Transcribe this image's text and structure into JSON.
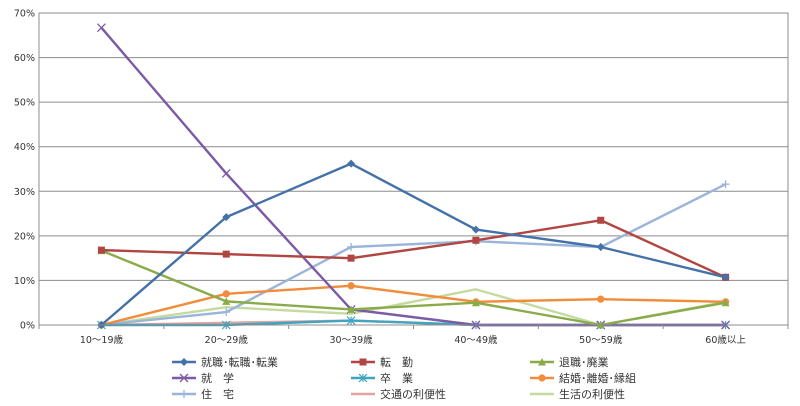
{
  "chart_data": {
    "type": "line",
    "categories": [
      "10～19歳",
      "20～29歳",
      "30～39歳",
      "40～49歳",
      "50～59歳",
      "60歳以上"
    ],
    "ylim": [
      0,
      70
    ],
    "yticks": [
      0,
      10,
      20,
      30,
      40,
      50,
      60,
      70
    ],
    "ytick_labels": [
      "0%",
      "10%",
      "20%",
      "30%",
      "40%",
      "50%",
      "60%",
      "70%"
    ],
    "grid": true,
    "legend_position": "bottom",
    "series": [
      {
        "name": "就職･転職･転業",
        "color": "#4472A8",
        "marker": "diamond",
        "values": [
          0,
          24.2,
          36.2,
          21.4,
          17.5,
          10.7
        ]
      },
      {
        "name": "転　勤",
        "color": "#B04541",
        "marker": "square",
        "values": [
          16.8,
          15.9,
          15.0,
          19.0,
          23.5,
          10.7
        ]
      },
      {
        "name": "退職･廃業",
        "color": "#8AAB4A",
        "marker": "triangle",
        "values": [
          16.7,
          5.3,
          3.5,
          5.0,
          0,
          5.0
        ]
      },
      {
        "name": "就　学",
        "color": "#7B5AA6",
        "marker": "x",
        "values": [
          66.7,
          34.0,
          3.5,
          0,
          0,
          0
        ]
      },
      {
        "name": "卒　業",
        "color": "#3FA5C0",
        "marker": "star",
        "values": [
          0,
          0,
          1.0,
          0,
          0,
          0
        ]
      },
      {
        "name": "結婚･離婚･縁組",
        "color": "#F08C3A",
        "marker": "circle",
        "values": [
          0,
          7.0,
          8.8,
          5.2,
          5.8,
          5.2
        ]
      },
      {
        "name": "住　宅",
        "color": "#9BB5DA",
        "marker": "plus",
        "values": [
          0,
          2.9,
          17.5,
          18.8,
          17.5,
          31.6
        ]
      },
      {
        "name": "交通の利便性",
        "color": "#E3A3A1",
        "marker": "none",
        "values": [
          0,
          0.5,
          1.0,
          0,
          0,
          0
        ]
      },
      {
        "name": "生活の利便性",
        "color": "#C5DA9F",
        "marker": "none",
        "values": [
          0,
          4.0,
          2.5,
          8.0,
          0,
          5.2
        ]
      }
    ]
  }
}
